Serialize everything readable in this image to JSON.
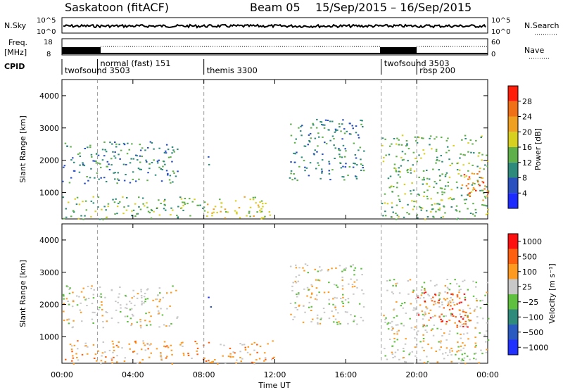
{
  "header": {
    "station": "Saskatoon (fitACF)",
    "beam": "Beam 05",
    "date_range": "15/Sep/2015 – 16/Sep/2015"
  },
  "summary": {
    "left_labels": {
      "nsky": "N.Sky",
      "freq": "Freq.",
      "freq_unit": "[MHz]",
      "cpid": "CPID"
    },
    "right_labels": {
      "nsearch": "N.Search",
      "nave": "Nave"
    },
    "nsky_ticks_left": [
      "10^5",
      "10^0"
    ],
    "nsky_ticks_right": [
      "10^5",
      "10^0"
    ],
    "freq_ticks_left": [
      "18",
      "8"
    ],
    "nave_ticks_right": [
      "60",
      "0"
    ]
  },
  "cpid_modes": [
    {
      "label": "twofsound 3503",
      "start_hour": 0.0,
      "row": "low"
    },
    {
      "label": "normal (fast) 151",
      "start_hour": 2.0,
      "row": "high"
    },
    {
      "label": "themis 3300",
      "start_hour": 8.0,
      "row": "low"
    },
    {
      "label": "twofsound 3503",
      "start_hour": 18.0,
      "row": "high"
    },
    {
      "label": "rbsp 200",
      "start_hour": 20.0,
      "row": "low"
    }
  ],
  "axes": {
    "x_label": "Time UT",
    "x_ticks": [
      "00:00",
      "04:00",
      "08:00",
      "12:00",
      "16:00",
      "20:00",
      "00:00"
    ],
    "x_range_hours": [
      0,
      24
    ],
    "y_label": "Slant Range [km]",
    "y_ticks": [
      "1000",
      "2000",
      "3000",
      "4000"
    ],
    "y_range_km": [
      180,
      4500
    ]
  },
  "power_colorbar": {
    "label": "Power [dB]",
    "ticks": [
      "4",
      "8",
      "12",
      "16",
      "20",
      "24",
      "28"
    ],
    "colors": [
      "#1e2bff",
      "#2a4fbf",
      "#2e8a7a",
      "#5fb04a",
      "#d8d020",
      "#f0a020",
      "#f07018",
      "#ff1e0a"
    ]
  },
  "velocity_colorbar": {
    "label": "Velocity [m s⁻¹]",
    "ticks": [
      "1000",
      "500",
      "100",
      "25",
      "−25",
      "−100",
      "−500",
      "−1000"
    ],
    "colors": [
      "#2030ff",
      "#2a5abf",
      "#2e8a7a",
      "#5fc040",
      "#c8c8c8",
      "#ff9a20",
      "#ff6010",
      "#ff1010"
    ]
  },
  "chart_data": {
    "type": "heatmap",
    "x_units": "hours UT",
    "y_units": "km",
    "power_regions": [
      {
        "t": [
          0.0,
          6.5
        ],
        "range": [
          1300,
          2600
        ],
        "level": 2
      },
      {
        "t": [
          0.0,
          8.0
        ],
        "range": [
          180,
          900
        ],
        "level": 3
      },
      {
        "t": [
          8.0,
          12.0
        ],
        "range": [
          180,
          900
        ],
        "level": 4
      },
      {
        "t": [
          8.2,
          8.4
        ],
        "range": [
          1850,
          2300
        ],
        "level": 1
      },
      {
        "t": [
          12.8,
          17.0
        ],
        "range": [
          1400,
          3300
        ],
        "level": 2
      },
      {
        "t": [
          18.0,
          24.0
        ],
        "range": [
          180,
          2800
        ],
        "level": 3
      },
      {
        "t": [
          22.5,
          24.0
        ],
        "range": [
          700,
          1700
        ],
        "level": 6
      }
    ],
    "velocity_regions": [
      {
        "t": [
          0.0,
          6.5
        ],
        "range": [
          1300,
          2600
        ],
        "level": 4
      },
      {
        "t": [
          0.0,
          8.0
        ],
        "range": [
          180,
          900
        ],
        "level": 5
      },
      {
        "t": [
          8.0,
          12.0
        ],
        "range": [
          180,
          900
        ],
        "level": 5
      },
      {
        "t": [
          8.2,
          8.4
        ],
        "range": [
          1850,
          2300
        ],
        "level": 0
      },
      {
        "t": [
          12.8,
          17.0
        ],
        "range": [
          1400,
          3300
        ],
        "level": 4
      },
      {
        "t": [
          18.0,
          24.0
        ],
        "range": [
          180,
          2800
        ],
        "level": 4
      },
      {
        "t": [
          20.0,
          23.0
        ],
        "range": [
          1300,
          2400
        ],
        "level": 6
      }
    ]
  }
}
